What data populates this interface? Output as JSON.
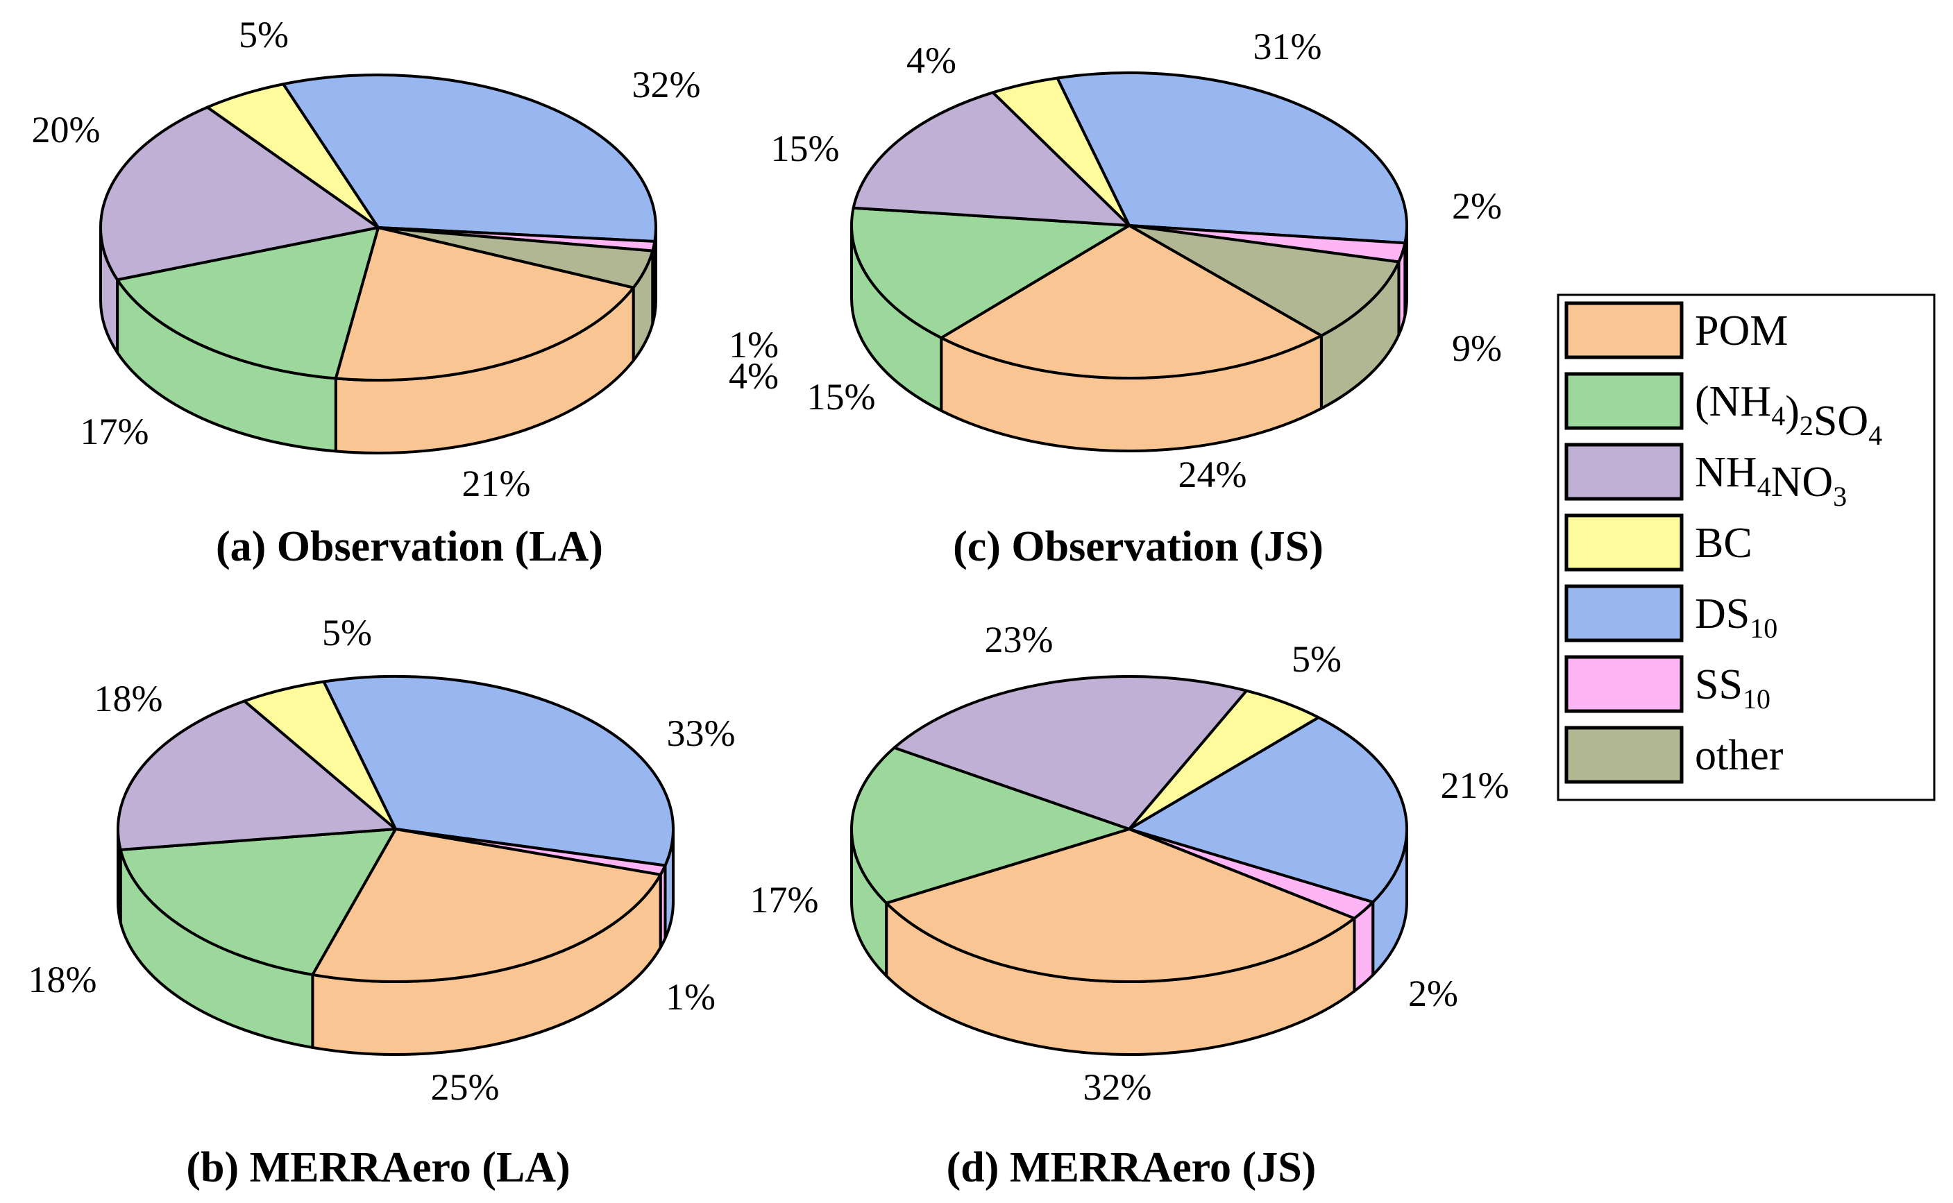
{
  "colors": {
    "POM": "#f9c592",
    "AS": "#9cd79c",
    "AN": "#c1b0d5",
    "BC": "#fdfb9c",
    "DS": "#98b7f1",
    "SS": "#fdb5f5",
    "other": "#b1b792"
  },
  "legend": {
    "items": [
      {
        "key": "POM",
        "parts": [
          [
            "POM",
            false
          ]
        ]
      },
      {
        "key": "AS",
        "parts": [
          [
            "(NH",
            false
          ],
          [
            "4",
            true
          ],
          [
            ")",
            false
          ],
          [
            "2",
            true
          ],
          [
            "SO",
            false
          ],
          [
            "4",
            true
          ]
        ]
      },
      {
        "key": "AN",
        "parts": [
          [
            "NH",
            false
          ],
          [
            "4",
            true
          ],
          [
            "NO",
            false
          ],
          [
            "3",
            true
          ]
        ]
      },
      {
        "key": "BC",
        "parts": [
          [
            "BC",
            false
          ]
        ]
      },
      {
        "key": "DS",
        "parts": [
          [
            "DS",
            false
          ],
          [
            "10",
            true
          ]
        ]
      },
      {
        "key": "SS",
        "parts": [
          [
            "SS",
            false
          ],
          [
            "10",
            true
          ]
        ]
      },
      {
        "key": "other",
        "parts": [
          [
            "other",
            false
          ]
        ]
      }
    ]
  },
  "chart_data": [
    {
      "type": "pie",
      "id": "a",
      "title": "(a) Observation (LA)",
      "slices": [
        {
          "key": "DS",
          "value": 32,
          "label": "32%"
        },
        {
          "key": "SS",
          "value": 1,
          "label": "1%"
        },
        {
          "key": "other",
          "value": 4,
          "label": "4%"
        },
        {
          "key": "POM",
          "value": 21,
          "label": "21%"
        },
        {
          "key": "AS",
          "value": 17,
          "label": "17%"
        },
        {
          "key": "AN",
          "value": 20,
          "label": "20%"
        },
        {
          "key": "BC",
          "value": 5,
          "label": "5%"
        }
      ]
    },
    {
      "type": "pie",
      "id": "b",
      "title": "(b) MERRAero (LA)",
      "slices": [
        {
          "key": "DS",
          "value": 33,
          "label": "33%"
        },
        {
          "key": "SS",
          "value": 1,
          "label": "1%"
        },
        {
          "key": "POM",
          "value": 25,
          "label": "25%"
        },
        {
          "key": "AS",
          "value": 18,
          "label": "18%"
        },
        {
          "key": "AN",
          "value": 18,
          "label": "18%"
        },
        {
          "key": "BC",
          "value": 5,
          "label": "5%"
        }
      ]
    },
    {
      "type": "pie",
      "id": "c",
      "title": "(c) Observation (JS)",
      "slices": [
        {
          "key": "DS",
          "value": 31,
          "label": "31%"
        },
        {
          "key": "SS",
          "value": 2,
          "label": "2%"
        },
        {
          "key": "other",
          "value": 9,
          "label": "9%"
        },
        {
          "key": "POM",
          "value": 24,
          "label": "24%"
        },
        {
          "key": "AS",
          "value": 15,
          "label": "15%"
        },
        {
          "key": "AN",
          "value": 15,
          "label": "15%"
        },
        {
          "key": "BC",
          "value": 4,
          "label": "4%"
        }
      ]
    },
    {
      "type": "pie",
      "id": "d",
      "title": "(d) MERRAero (JS)",
      "slices": [
        {
          "key": "DS",
          "value": 21,
          "label": "21%"
        },
        {
          "key": "SS",
          "value": 2,
          "label": "2%"
        },
        {
          "key": "POM",
          "value": 32,
          "label": "32%"
        },
        {
          "key": "AS",
          "value": 17,
          "label": "17%"
        },
        {
          "key": "AN",
          "value": 23,
          "label": "23%"
        },
        {
          "key": "BC",
          "value": 5,
          "label": "5%"
        }
      ]
    }
  ]
}
